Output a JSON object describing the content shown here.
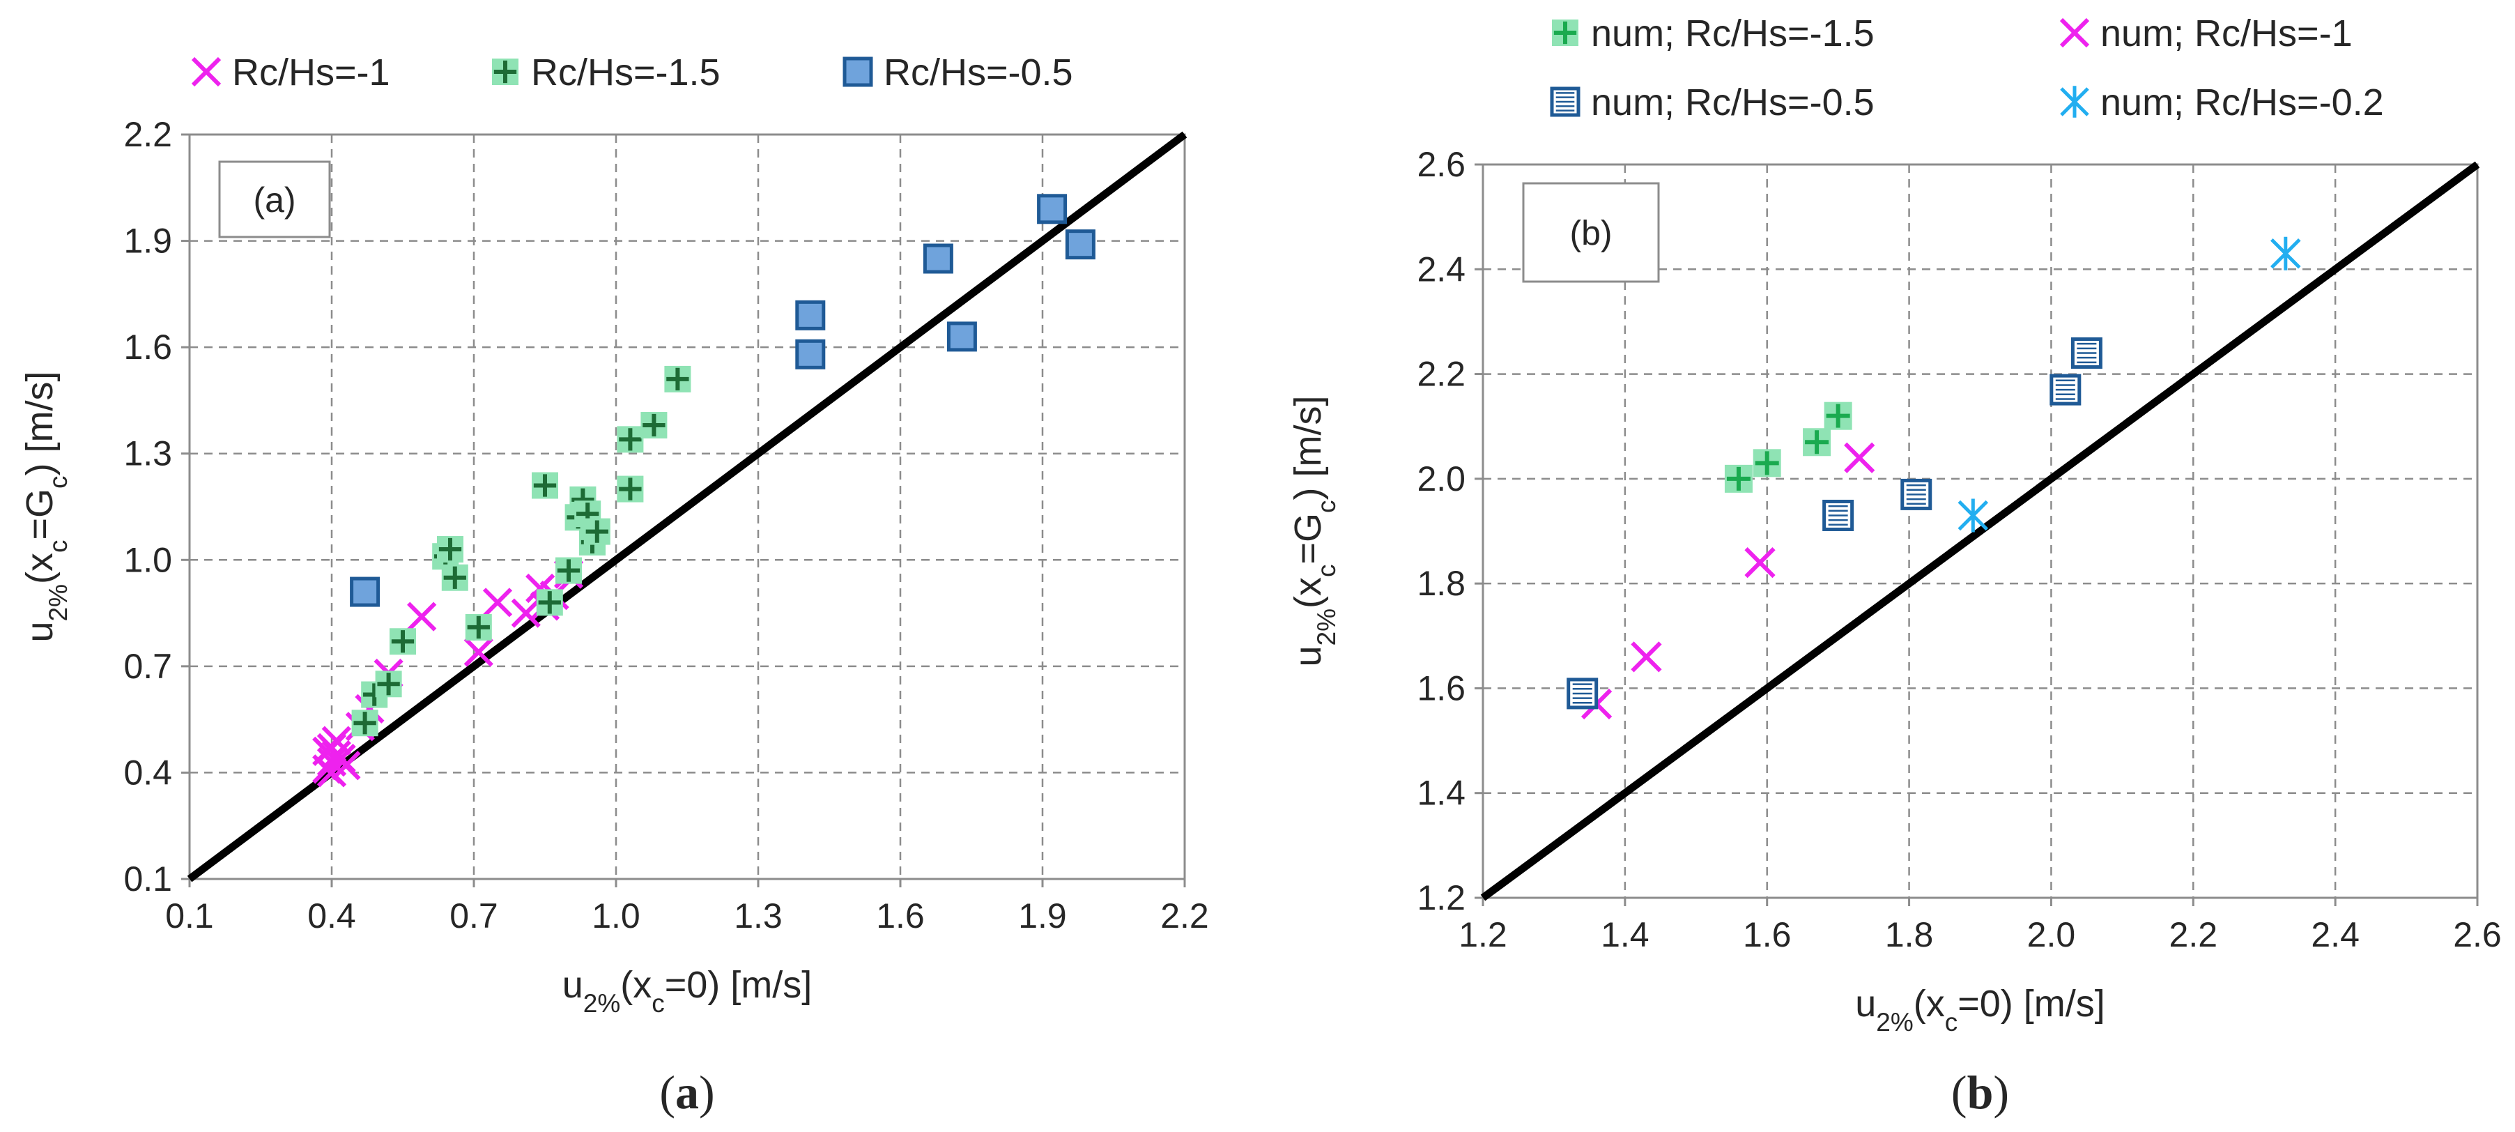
{
  "chart_data": [
    {
      "type": "scatter",
      "panel_label": "(a)",
      "caption": "a",
      "xlabel": "u2%(xc=0) [m/s]",
      "ylabel": "u2%(xc=Gc) [m/s]",
      "xlim": [
        0.1,
        2.2
      ],
      "ylim": [
        0.1,
        2.2
      ],
      "xticks": [
        "0.1",
        "0.4",
        "0.7",
        "1.0",
        "1.3",
        "1.6",
        "1.9",
        "2.2"
      ],
      "yticks": [
        "0.1",
        "0.4",
        "0.7",
        "1.0",
        "1.3",
        "1.6",
        "1.9",
        "2.2"
      ],
      "grid": true,
      "legend_position": "top",
      "reference_line": {
        "x": [
          0.1,
          2.2
        ],
        "y": [
          0.1,
          2.2
        ]
      },
      "series": [
        {
          "name": "Rc/Hs=-1",
          "marker": "x",
          "color": "#ee22ee",
          "x": [
            0.39,
            0.4,
            0.41,
            0.4,
            0.42,
            0.43,
            0.41,
            0.39,
            0.4,
            0.46,
            0.48,
            0.52,
            0.59,
            0.71,
            0.75,
            0.81,
            0.84,
            0.85,
            0.87,
            0.9
          ],
          "y": [
            0.41,
            0.43,
            0.45,
            0.47,
            0.44,
            0.42,
            0.49,
            0.46,
            0.4,
            0.53,
            0.58,
            0.68,
            0.84,
            0.74,
            0.88,
            0.85,
            0.92,
            0.87,
            0.9,
            0.96
          ]
        },
        {
          "name": "Rc/Hs=-1.5",
          "marker": "plus-on-square",
          "color": "#1d6b35",
          "fill": "#8fe3b4",
          "x": [
            0.47,
            0.49,
            0.52,
            0.55,
            0.64,
            0.65,
            0.66,
            0.71,
            0.85,
            0.86,
            0.9,
            0.92,
            0.93,
            0.94,
            0.95,
            0.96,
            1.03,
            1.03,
            1.08,
            1.13
          ],
          "y": [
            0.54,
            0.62,
            0.65,
            0.77,
            1.01,
            1.03,
            0.95,
            0.81,
            1.21,
            0.88,
            0.97,
            1.12,
            1.17,
            1.13,
            1.05,
            1.08,
            1.34,
            1.2,
            1.38,
            1.51
          ]
        },
        {
          "name": "Rc/Hs=-0.5",
          "marker": "square",
          "color": "#1f5a96",
          "fill": "#6fa3dc",
          "x": [
            0.47,
            1.41,
            1.41,
            1.68,
            1.73,
            1.92,
            1.98
          ],
          "y": [
            0.91,
            1.69,
            1.58,
            1.85,
            1.63,
            1.99,
            1.89
          ]
        }
      ]
    },
    {
      "type": "scatter",
      "panel_label": "(b)",
      "caption": "b",
      "xlabel": "u2%(xc=0) [m/s]",
      "ylabel": "u2%(xc=Gc) [m/s]",
      "xlim": [
        1.2,
        2.6
      ],
      "ylim": [
        1.2,
        2.6
      ],
      "xticks": [
        "1.2",
        "1.4",
        "1.6",
        "1.8",
        "2.0",
        "2.2",
        "2.4",
        "2.6"
      ],
      "yticks": [
        "1.2",
        "1.4",
        "1.6",
        "1.8",
        "2.0",
        "2.2",
        "2.4",
        "2.6"
      ],
      "grid": true,
      "legend_position": "top",
      "reference_line": {
        "x": [
          1.2,
          2.6
        ],
        "y": [
          1.2,
          2.6
        ]
      },
      "series": [
        {
          "name": "num; Rc/Hs=-1.5",
          "marker": "plus-on-square",
          "color": "#1aaa4f",
          "fill": "#8fe3b4",
          "x": [
            1.56,
            1.6,
            1.67,
            1.7
          ],
          "y": [
            2.0,
            2.03,
            2.07,
            2.12
          ]
        },
        {
          "name": "num; Rc/Hs=-1",
          "marker": "x",
          "color": "#ee22ee",
          "x": [
            1.36,
            1.43,
            1.59,
            1.73
          ],
          "y": [
            1.57,
            1.66,
            1.84,
            2.04
          ]
        },
        {
          "name": "num; Rc/Hs=-0.5",
          "marker": "striped-square",
          "color": "#1f5a96",
          "x": [
            1.34,
            1.7,
            1.81,
            2.02,
            2.05
          ],
          "y": [
            1.59,
            1.93,
            1.97,
            2.17,
            2.24
          ]
        },
        {
          "name": "num; Rc/Hs=-0.2",
          "marker": "star",
          "color": "#22aef0",
          "x": [
            1.89,
            2.33
          ],
          "y": [
            1.93,
            2.43
          ]
        }
      ]
    }
  ]
}
